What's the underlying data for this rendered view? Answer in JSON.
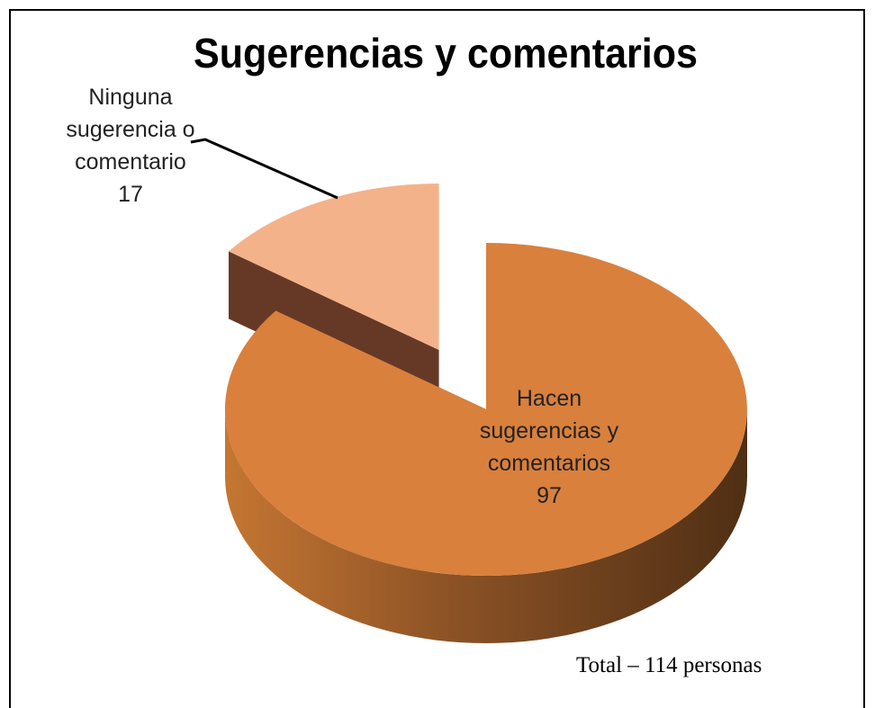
{
  "chart_data": {
    "type": "pie",
    "title": "Sugerencias y comentarios",
    "categories": [
      "Hacen sugerencias y comentarios",
      "Ninguna sugerencia o comentario"
    ],
    "values": [
      97,
      17
    ],
    "colors": [
      "#d9803d",
      "#f4b28a"
    ],
    "annotation": "Total – 114 personas"
  }
}
